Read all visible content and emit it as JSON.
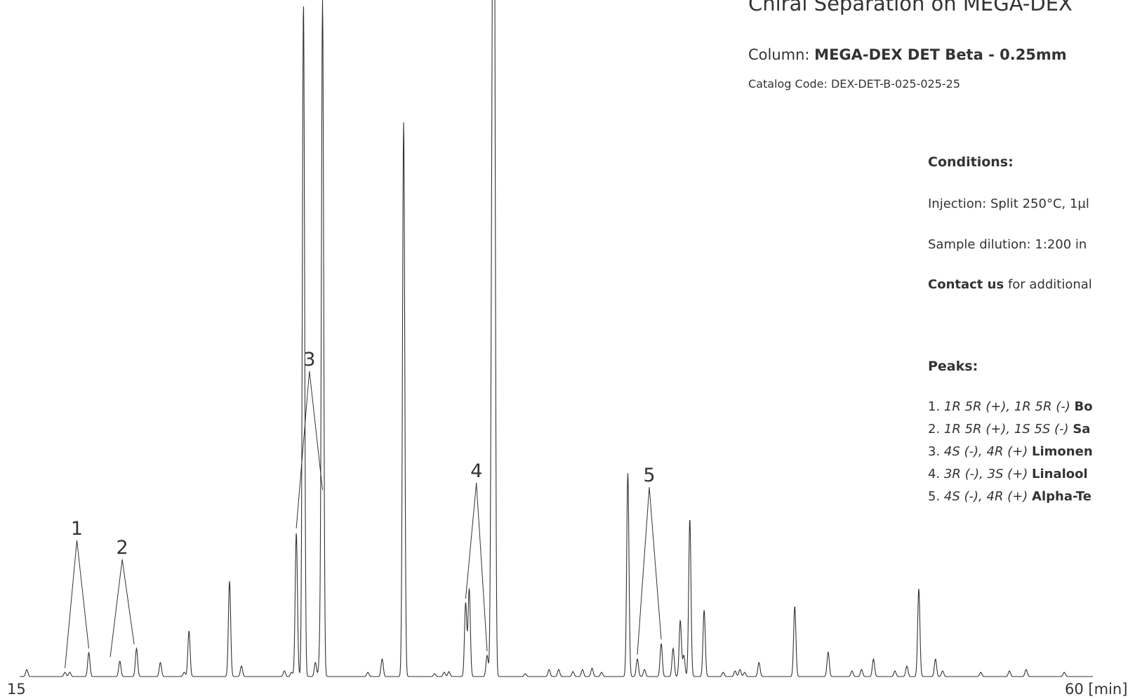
{
  "header": {
    "title": "Chiral Separation on MEGA-DEX",
    "column_prefix": "Column: ",
    "column_name": "MEGA-DEX DET Beta - 0.25mm",
    "catalog": "Catalog Code: DEX-DET-B-025-025-25"
  },
  "conditions": {
    "title": "Conditions:",
    "injection": "Injection: Split 250°C, 1µl",
    "dilution": "Sample dilution: 1:200 in",
    "contact_bold": "Contact us",
    "contact_rest": " for additional"
  },
  "peaks_legend": {
    "title": "Peaks:",
    "items": [
      {
        "num": "1. ",
        "config": "1R 5R (+), 1R 5R (-) ",
        "name": "Bo"
      },
      {
        "num": "2. ",
        "config": "1R 5R (+), 1S 5S (-) ",
        "name": "Sa"
      },
      {
        "num": "3. ",
        "config": "4S (-), 4R (+) ",
        "name": "Limonen"
      },
      {
        "num": "4. ",
        "config": "3R (-), 3S (+) ",
        "name": "Linalool"
      },
      {
        "num": "5. ",
        "config": "4S (-), 4R (+) ",
        "name": "Alpha-Te"
      }
    ]
  },
  "chart_data": {
    "type": "line",
    "x_unit": "min",
    "xlim": [
      15,
      60
    ],
    "x_start_label": "15",
    "x_end_label": "60 [min]",
    "line_color": "#333333",
    "peaks": [
      {
        "x": 15.3,
        "h": 10
      },
      {
        "x": 16.9,
        "h": 6
      },
      {
        "x": 17.1,
        "h": 6
      },
      {
        "x": 17.9,
        "h": 34
      },
      {
        "x": 19.2,
        "h": 22
      },
      {
        "x": 19.9,
        "h": 40
      },
      {
        "x": 20.9,
        "h": 20
      },
      {
        "x": 21.9,
        "h": 6
      },
      {
        "x": 22.1,
        "h": 65
      },
      {
        "x": 23.8,
        "h": 136
      },
      {
        "x": 24.3,
        "h": 15
      },
      {
        "x": 26.1,
        "h": 8
      },
      {
        "x": 26.4,
        "h": 6
      },
      {
        "x": 26.6,
        "h": 205
      },
      {
        "x": 26.9,
        "h": 960
      },
      {
        "x": 27.4,
        "h": 20
      },
      {
        "x": 27.6,
        "h": 40
      },
      {
        "x": 27.7,
        "h": 960
      },
      {
        "x": 29.6,
        "h": 6
      },
      {
        "x": 30.2,
        "h": 25
      },
      {
        "x": 31.1,
        "h": 790
      },
      {
        "x": 32.4,
        "h": 4
      },
      {
        "x": 32.8,
        "h": 6
      },
      {
        "x": 33.0,
        "h": 7
      },
      {
        "x": 33.7,
        "h": 105
      },
      {
        "x": 33.85,
        "h": 125
      },
      {
        "x": 34.6,
        "h": 30
      },
      {
        "x": 34.8,
        "h": 455
      },
      {
        "x": 34.85,
        "h": 455
      },
      {
        "x": 34.9,
        "h": 960
      },
      {
        "x": 36.2,
        "h": 4
      },
      {
        "x": 37.2,
        "h": 10
      },
      {
        "x": 37.6,
        "h": 10
      },
      {
        "x": 38.2,
        "h": 7
      },
      {
        "x": 38.6,
        "h": 10
      },
      {
        "x": 39.0,
        "h": 12
      },
      {
        "x": 39.4,
        "h": 6
      },
      {
        "x": 40.5,
        "h": 290
      },
      {
        "x": 40.9,
        "h": 25
      },
      {
        "x": 41.2,
        "h": 10
      },
      {
        "x": 41.9,
        "h": 47
      },
      {
        "x": 42.4,
        "h": 40
      },
      {
        "x": 42.7,
        "h": 80
      },
      {
        "x": 42.85,
        "h": 30
      },
      {
        "x": 43.1,
        "h": 225
      },
      {
        "x": 43.7,
        "h": 95
      },
      {
        "x": 44.5,
        "h": 6
      },
      {
        "x": 45.0,
        "h": 8
      },
      {
        "x": 45.2,
        "h": 10
      },
      {
        "x": 45.4,
        "h": 6
      },
      {
        "x": 46.0,
        "h": 20
      },
      {
        "x": 47.5,
        "h": 100
      },
      {
        "x": 48.9,
        "h": 35
      },
      {
        "x": 49.9,
        "h": 8
      },
      {
        "x": 50.3,
        "h": 10
      },
      {
        "x": 50.8,
        "h": 25
      },
      {
        "x": 51.7,
        "h": 8
      },
      {
        "x": 52.2,
        "h": 15
      },
      {
        "x": 52.7,
        "h": 125
      },
      {
        "x": 53.4,
        "h": 25
      },
      {
        "x": 53.7,
        "h": 8
      },
      {
        "x": 55.3,
        "h": 6
      },
      {
        "x": 56.5,
        "h": 8
      },
      {
        "x": 57.2,
        "h": 10
      },
      {
        "x": 58.8,
        "h": 6
      }
    ],
    "annotations": [
      {
        "label": "1",
        "peaks_x": [
          16.9,
          17.9
        ]
      },
      {
        "label": "2",
        "peaks_x": [
          18.8,
          19.8
        ]
      },
      {
        "label": "3",
        "peaks_x": [
          26.6,
          27.7
        ]
      },
      {
        "label": "4",
        "peaks_x": [
          33.7,
          34.6
        ]
      },
      {
        "label": "5",
        "peaks_x": [
          40.9,
          41.9
        ]
      }
    ]
  }
}
